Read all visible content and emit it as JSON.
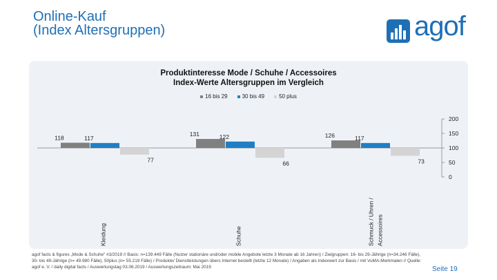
{
  "header": {
    "title_line1": "Online-Kauf",
    "title_line2": "(Index Altersgruppen)"
  },
  "logo": {
    "text": "agof"
  },
  "chart_data": {
    "type": "bar",
    "title_line1": "Produktinteresse Mode / Schuhe / Accessoires",
    "title_line2": "Index-Werte Altersgruppen im Vergleich",
    "categories": [
      "Kleidung",
      "Schuhe",
      "Schmuck / Uhren / Accessoires"
    ],
    "series": [
      {
        "name": "16 bis 29",
        "color": "#808080",
        "values": [
          118,
          131,
          126
        ]
      },
      {
        "name": "30 bis 49",
        "color": "#1f7fc4",
        "values": [
          117,
          122,
          117
        ]
      },
      {
        "name": "50 plus",
        "color": "#d4d4d4",
        "values": [
          77,
          66,
          73
        ]
      }
    ],
    "ylim": [
      0,
      200
    ],
    "yticks": [
      0,
      50,
      100,
      150,
      200
    ],
    "baseline": 100,
    "ytick_labels": [
      "0",
      "50",
      "100",
      "150",
      "200"
    ],
    "y_axis_side": "right",
    "legend_position": "top-center"
  },
  "footnote": "agof facts & figures „Mode & Schuhe“ #3/2019 // Basis: n=139.449 Fälle (Nutzer stationäre und/oder mobile Angebote letzte 3 Monate ab 16 Jahren) / Zielgruppen: 16- bis 29-Jährige (n=34.246 Fälle), 30- bis 49-Jährige (n= 49.980 Fälle), 50plus (n= 55.219 Fälle) / Produkte/ Dienstleistungen übers Internet bestellt (letzte 12 Monate) / Angaben als Indexwert zur Basis / mit VuMA-Merkmalen // Quelle: agof e. V. / daily digital facts / Auswertungstag 03.06.2019 / Auswertungszeitraum: Mai 2019",
  "page": {
    "label": "Seite 19"
  }
}
